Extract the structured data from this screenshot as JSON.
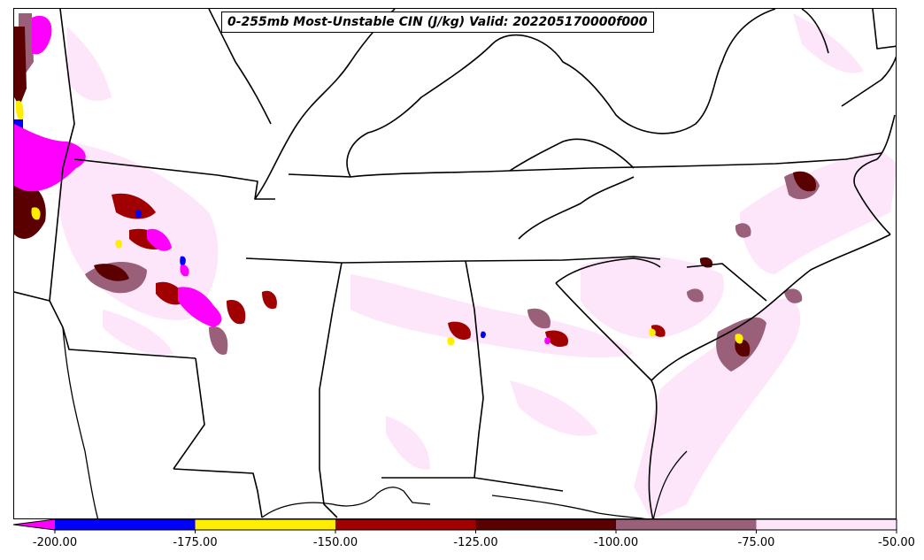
{
  "map": {
    "title": "0-255mb Most-Unstable CIN (J/kg) Valid: 202205170000f000",
    "colors": {
      "boundary": "#000000",
      "background": "#ffffff"
    }
  },
  "colorbar": {
    "extend": "min",
    "segments": [
      {
        "from": -225,
        "to": -200,
        "color": "#ff00ff"
      },
      {
        "from": -200,
        "to": -175,
        "color": "#0000ff"
      },
      {
        "from": -175,
        "to": -150,
        "color": "#ffee00"
      },
      {
        "from": -150,
        "to": -125,
        "color": "#a00000"
      },
      {
        "from": -125,
        "to": -100,
        "color": "#5a0000"
      },
      {
        "from": -100,
        "to": -75,
        "color": "#9a607a"
      },
      {
        "from": -75,
        "to": -50,
        "color": "#fde6fa"
      }
    ],
    "tick_labels": [
      "-200.00",
      "-175.00",
      "-150.00",
      "-125.00",
      "-100.00",
      "-75.00",
      "-50.00"
    ]
  }
}
